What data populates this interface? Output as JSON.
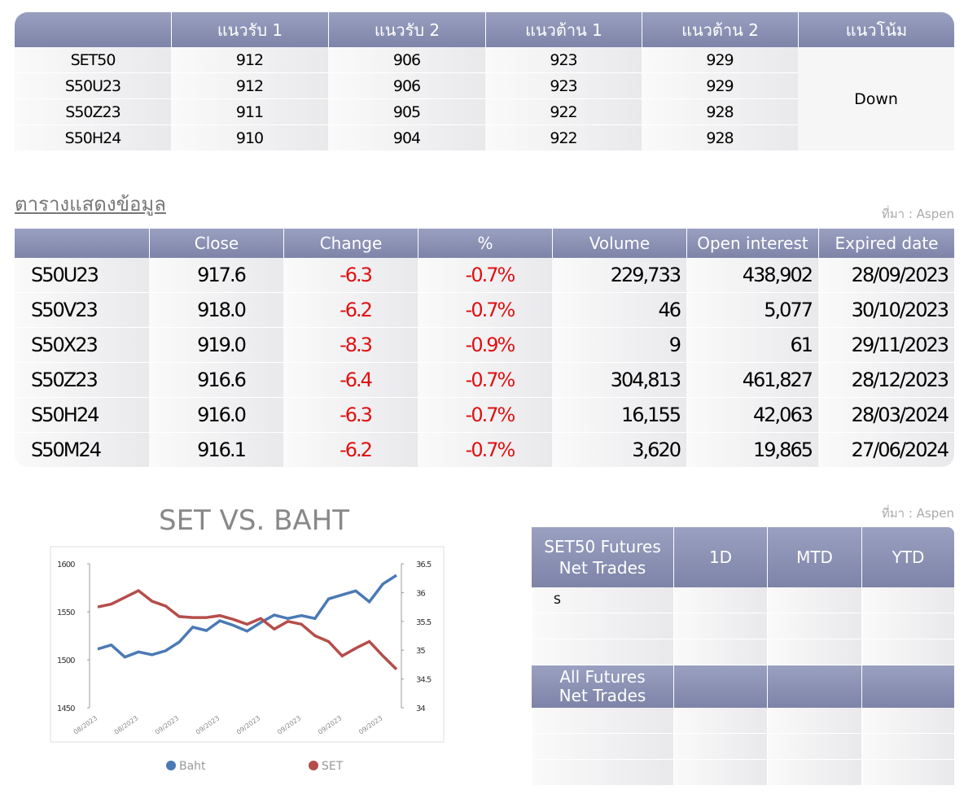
{
  "support_table": {
    "headers": [
      "แนวรับ 1",
      "แนวรับ 2",
      "แนวต้าน 1",
      "แนวต้าน 2",
      "แนวโน้ม"
    ],
    "rows": [
      [
        "SET50",
        "912",
        "906",
        "923",
        "929"
      ],
      [
        "S50U23",
        "912",
        "906",
        "923",
        "929"
      ],
      [
        "S50Z23",
        "911",
        "905",
        "922",
        "928"
      ],
      [
        "S50H24",
        "910",
        "904",
        "922",
        "928"
      ]
    ],
    "trend": "Down"
  },
  "section_title": "ตารางแสดงข้อมูล",
  "source_1": "ที่มา : Aspen",
  "futures_table": {
    "headers": [
      "Close",
      "Change",
      "%",
      "Volume",
      "Open interest",
      "Expired date"
    ],
    "rows": [
      [
        "S50U23",
        "917.6",
        "-6.3",
        "-0.7%",
        "229,733",
        "438,902",
        "28/09/2023"
      ],
      [
        "S50V23",
        "918.0",
        "-6.2",
        "-0.7%",
        "46",
        "5,077",
        "30/10/2023"
      ],
      [
        "S50X23",
        "919.0",
        "-8.3",
        "-0.9%",
        "9",
        "61",
        "29/11/2023"
      ],
      [
        "S50Z23",
        "916.6",
        "-6.4",
        "-0.7%",
        "304,813",
        "461,827",
        "28/12/2023"
      ],
      [
        "S50H24",
        "916.0",
        "-6.3",
        "-0.7%",
        "16,155",
        "42,063",
        "28/03/2024"
      ],
      [
        "S50M24",
        "916.1",
        "-6.2",
        "-0.7%",
        "3,620",
        "19,865",
        "27/06/2024"
      ]
    ]
  },
  "chart_data": {
    "type": "line",
    "title": "SET VS. BAHT",
    "categories": [
      "08/2023",
      null,
      null,
      "08/2023",
      null,
      null,
      "09/2023",
      null,
      null,
      "09/2023",
      null,
      null,
      "09/2023",
      null,
      null,
      "09/2023",
      null,
      null,
      "09/2023",
      null,
      null,
      "09/2023",
      null
    ],
    "series": [
      {
        "name": "Baht",
        "color": "#4a7ab5",
        "axis": "y2",
        "values": [
          35.02,
          35.09,
          34.88,
          34.97,
          34.92,
          34.99,
          35.14,
          35.4,
          35.34,
          35.51,
          35.43,
          35.33,
          35.48,
          35.61,
          35.55,
          35.6,
          35.55,
          35.89,
          35.96,
          36.03,
          35.84,
          36.15,
          36.3
        ]
      },
      {
        "name": "SET",
        "color": "#b54d4a",
        "values": [
          1555,
          1558,
          1565,
          1572,
          1561,
          1556,
          1545,
          1544,
          1544,
          1546,
          1542,
          1537,
          1543,
          1532,
          1540,
          1537,
          1525,
          1519,
          1504,
          1512,
          1519,
          1504,
          1490
        ]
      }
    ],
    "ylim": [
      1450,
      1600
    ],
    "yticks": [
      1450,
      1500,
      1550,
      1600
    ],
    "y2lim": [
      34,
      36.5
    ],
    "y2ticks": [
      34,
      34.5,
      35,
      35.5,
      36,
      36.5
    ]
  },
  "source_2": "ที่มา : Aspen",
  "net_trades_table": {
    "headers": [
      "SET50 Futures Net Trades",
      "1D",
      "MTD",
      "YTD"
    ],
    "row_label": "S",
    "section_2": "All Futures Net Trades"
  }
}
